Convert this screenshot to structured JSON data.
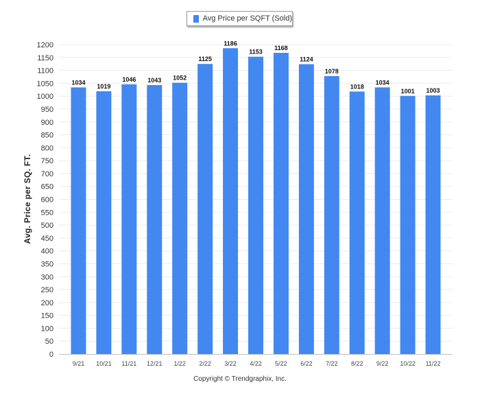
{
  "chart_data": {
    "type": "bar",
    "categories": [
      "9/21",
      "10/21",
      "11/21",
      "12/21",
      "1/22",
      "2/22",
      "3/22",
      "4/22",
      "5/22",
      "6/22",
      "7/22",
      "8/22",
      "9/22",
      "10/22",
      "11/22"
    ],
    "series": [
      {
        "name": "Avg Price per SQFT (Sold)",
        "values": [
          1034,
          1019,
          1046,
          1043,
          1052,
          1125,
          1186,
          1153,
          1168,
          1124,
          1078,
          1018,
          1034,
          1001,
          1003
        ],
        "color": "#4288f0"
      }
    ],
    "title": "",
    "xlabel": "",
    "ylabel": "Avg. Price per SQ. FT.",
    "ylim": [
      0,
      1200
    ],
    "ytick_step": 50,
    "grid": true,
    "legend": "top-center",
    "data_labels": true
  },
  "footer": {
    "copyright": "Copyright © Trendgraphix, Inc."
  }
}
